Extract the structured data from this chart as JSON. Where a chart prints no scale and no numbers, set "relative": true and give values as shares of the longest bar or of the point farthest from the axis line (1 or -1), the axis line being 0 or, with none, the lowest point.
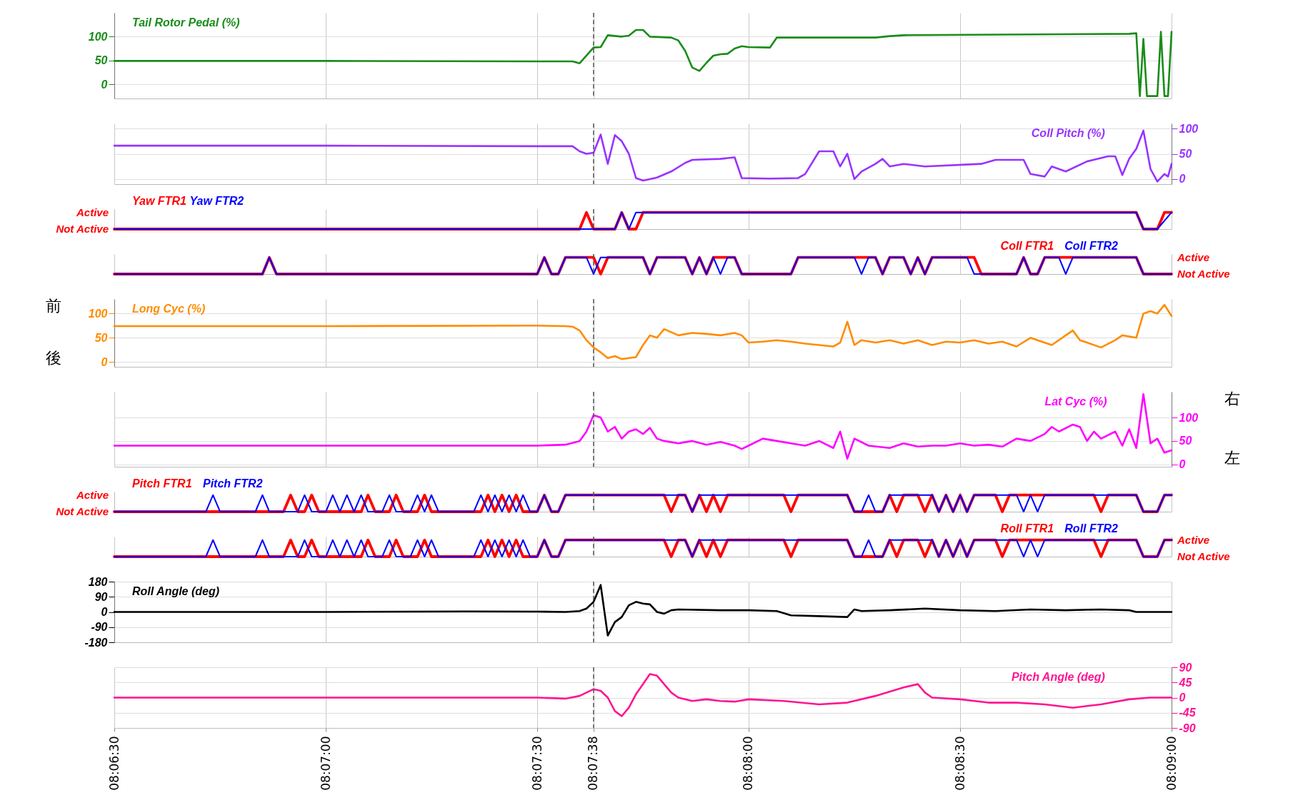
{
  "chart_data": [
    {
      "type": "line",
      "x": [
        8.10833,
        8.11667,
        8.125,
        8.12639,
        8.12667,
        8.12722,
        8.1275,
        8.12778,
        8.12833,
        8.12861,
        8.12889,
        8.12917,
        8.12944,
        8.13028,
        8.13056,
        8.13083,
        8.13111,
        8.13139,
        8.13167,
        8.13194,
        8.13222,
        8.1325,
        8.13278,
        8.13306,
        8.13333,
        8.13417,
        8.13444,
        8.13833,
        8.13889,
        8.13944,
        8.14833,
        8.14861,
        8.14875,
        8.14889,
        8.14903,
        8.14944,
        8.14958,
        8.14972,
        8.14986,
        8.15
      ],
      "series": [
        {
          "name": "Tail Rotor Pedal (%)",
          "color": "#1a8c1a",
          "values": [
            49,
            49,
            48,
            48,
            44,
            77,
            78,
            103,
            100,
            102,
            114,
            114,
            100,
            98,
            92,
            70,
            35,
            28,
            45,
            60,
            63,
            64,
            75,
            80,
            78,
            77,
            98,
            98,
            101,
            103,
            106,
            107,
            -25,
            95,
            -25,
            -25,
            110,
            -25,
            -25,
            110
          ]
        }
      ],
      "xlim": [
        8.10833,
        8.15
      ],
      "xticks": [
        8.10833,
        8.11667,
        8.125,
        8.12722,
        8.13333,
        8.14167,
        8.15
      ],
      "ylim": [
        -30,
        150
      ],
      "yticks": [
        0,
        50,
        100
      ],
      "grid": true,
      "tick_labels": "y",
      "ref_lines": [
        {
          "axis": "x",
          "value": 8.12722,
          "line_style": "dashed",
          "color": "#555555"
        }
      ]
    },
    {
      "type": "line",
      "x": [
        8.10833,
        8.11667,
        8.125,
        8.12639,
        8.12667,
        8.12694,
        8.12722,
        8.1275,
        8.12778,
        8.12806,
        8.12833,
        8.12861,
        8.12889,
        8.12917,
        8.12944,
        8.12972,
        8.13028,
        8.13083,
        8.13111,
        8.13222,
        8.13278,
        8.13306,
        8.13417,
        8.13528,
        8.13556,
        8.13611,
        8.13667,
        8.13694,
        8.13722,
        8.1375,
        8.13778,
        8.13833,
        8.13861,
        8.13889,
        8.13944,
        8.14028,
        8.1425,
        8.14306,
        8.14417,
        8.14444,
        8.145,
        8.14528,
        8.14583,
        8.14667,
        8.1475,
        8.14778,
        8.14806,
        8.14833,
        8.14861,
        8.14889,
        8.14917,
        8.14944,
        8.14972,
        8.14986,
        8.15
      ],
      "series": [
        {
          "name": "Coll Pitch (%)",
          "color": "#9933ff",
          "axis": "y2",
          "values": [
            66,
            66,
            65,
            65,
            55,
            50,
            52,
            88,
            30,
            87,
            75,
            50,
            2,
            -3,
            0,
            3,
            15,
            32,
            38,
            40,
            43,
            2,
            1,
            2,
            10,
            55,
            55,
            25,
            50,
            0,
            15,
            30,
            40,
            25,
            30,
            25,
            30,
            38,
            38,
            10,
            5,
            25,
            15,
            35,
            45,
            45,
            8,
            40,
            60,
            96,
            20,
            -5,
            10,
            5,
            30
          ]
        }
      ],
      "xlim": [
        8.10833,
        8.15
      ],
      "xticks": [
        8.10833,
        8.11667,
        8.125,
        8.12722,
        8.13333,
        8.14167,
        8.15
      ],
      "y2lim": [
        -10,
        110
      ],
      "y2ticks": [
        0,
        50,
        100
      ],
      "grid": true,
      "tick_labels": "y",
      "ref_lines": [
        {
          "axis": "x",
          "value": 8.12722,
          "line_style": "dashed",
          "color": "#555555"
        }
      ]
    },
    {
      "type": "line",
      "relative": true,
      "series": [
        {
          "name": "Yaw FTR1",
          "color": "#ff0000",
          "x": [
            8.10833,
            8.12667,
            8.12694,
            8.12722,
            8.12806,
            8.12833,
            8.12861,
            8.12889,
            8.12917,
            8.14861,
            8.14889,
            8.14944,
            8.14972,
            8.15
          ],
          "values": [
            0,
            0,
            1,
            0,
            0,
            1,
            0,
            0,
            1,
            1,
            0,
            0,
            1,
            1
          ]
        },
        {
          "name": "Yaw FTR2",
          "color": "#0000ff",
          "x": [
            8.10833,
            8.12806,
            8.12833,
            8.12861,
            8.12889,
            8.14861,
            8.14889,
            8.14944,
            8.15
          ],
          "values": [
            0,
            0,
            1,
            0,
            1,
            1,
            0,
            0,
            1
          ]
        }
      ],
      "xlim": [
        8.10833,
        8.15
      ],
      "xticks": [
        8.10833,
        8.11667,
        8.125,
        8.12722,
        8.13333,
        8.14167,
        8.15
      ],
      "annotations": [
        "Active",
        "Not Active"
      ],
      "grid": true,
      "tick_labels": false,
      "ref_lines": [
        {
          "axis": "x",
          "value": 8.12722,
          "line_style": "dashed",
          "color": "#555555"
        }
      ]
    },
    {
      "type": "line",
      "relative": true,
      "series": [
        {
          "name": "Coll FTR1",
          "color": "#ff0000",
          "axis": "y2",
          "x": [
            8.10833,
            8.11417,
            8.11444,
            8.11472,
            8.125,
            8.12528,
            8.12556,
            8.12583,
            8.12611,
            8.12722,
            8.1275,
            8.12778,
            8.12917,
            8.12944,
            8.12972,
            8.13083,
            8.13111,
            8.13139,
            8.13167,
            8.13194,
            8.13278,
            8.13306,
            8.135,
            8.13528,
            8.13833,
            8.13861,
            8.13889,
            8.13944,
            8.13972,
            8.14,
            8.14028,
            8.14056,
            8.14222,
            8.1425,
            8.14389,
            8.14417,
            8.14444,
            8.14472,
            8.145,
            8.14861,
            8.14889,
            8.15
          ],
          "values": [
            0,
            0,
            1,
            0,
            0,
            1,
            0,
            0,
            1,
            1,
            0,
            1,
            1,
            0,
            1,
            1,
            0,
            1,
            0,
            1,
            1,
            0,
            0,
            1,
            1,
            0,
            1,
            1,
            0,
            1,
            0,
            1,
            1,
            0,
            0,
            1,
            0,
            0,
            1,
            1,
            0,
            0
          ]
        },
        {
          "name": "Coll FTR2",
          "color": "#0000ff",
          "axis": "y2",
          "x": [
            8.10833,
            8.11417,
            8.11444,
            8.11472,
            8.125,
            8.12528,
            8.12556,
            8.12583,
            8.12611,
            8.12694,
            8.12722,
            8.1275,
            8.12917,
            8.12944,
            8.12972,
            8.13083,
            8.13111,
            8.13139,
            8.13167,
            8.13194,
            8.13222,
            8.1325,
            8.13278,
            8.13306,
            8.135,
            8.13528,
            8.1375,
            8.13778,
            8.13806,
            8.13833,
            8.13861,
            8.13889,
            8.13944,
            8.13972,
            8.14,
            8.14028,
            8.14056,
            8.14194,
            8.14222,
            8.1425,
            8.14389,
            8.14417,
            8.14444,
            8.14472,
            8.145,
            8.14556,
            8.14583,
            8.14611,
            8.14861,
            8.14889,
            8.15
          ],
          "values": [
            0,
            0,
            1,
            0,
            0,
            1,
            0,
            0,
            1,
            1,
            0,
            1,
            1,
            0,
            1,
            1,
            0,
            1,
            0,
            1,
            0,
            1,
            1,
            0,
            0,
            1,
            1,
            0,
            1,
            1,
            0,
            1,
            1,
            0,
            1,
            0,
            1,
            1,
            0,
            0,
            0,
            1,
            0,
            0,
            1,
            1,
            0,
            1,
            1,
            0,
            0
          ]
        }
      ],
      "xlim": [
        8.10833,
        8.15
      ],
      "xticks": [
        8.10833,
        8.11667,
        8.125,
        8.12722,
        8.13333,
        8.14167,
        8.15
      ],
      "annotations": [
        "Active",
        "Not Active"
      ],
      "grid": true,
      "tick_labels": false,
      "ref_lines": [
        {
          "axis": "x",
          "value": 8.12722,
          "line_style": "dashed",
          "color": "#555555"
        }
      ]
    },
    {
      "type": "line",
      "x": [
        8.10833,
        8.11667,
        8.125,
        8.12611,
        8.12639,
        8.12667,
        8.12694,
        8.12722,
        8.1275,
        8.12778,
        8.12806,
        8.12833,
        8.12861,
        8.12889,
        8.12917,
        8.12944,
        8.12972,
        8.13,
        8.13056,
        8.13111,
        8.13167,
        8.13222,
        8.13278,
        8.13306,
        8.13333,
        8.13389,
        8.13444,
        8.135,
        8.13556,
        8.13611,
        8.13667,
        8.13694,
        8.13722,
        8.1375,
        8.13778,
        8.13833,
        8.13889,
        8.13944,
        8.14,
        8.14056,
        8.14111,
        8.14167,
        8.14222,
        8.14278,
        8.14333,
        8.14389,
        8.14444,
        8.14472,
        8.14528,
        8.14583,
        8.14611,
        8.14639,
        8.14667,
        8.14722,
        8.14778,
        8.14806,
        8.14861,
        8.14889,
        8.14917,
        8.14944,
        8.14972,
        8.15
      ],
      "series": [
        {
          "name": "Long Cyc (%)",
          "color": "#ff8c00",
          "values": [
            74,
            74,
            75,
            74,
            73,
            65,
            45,
            30,
            20,
            8,
            12,
            6,
            8,
            10,
            35,
            55,
            50,
            68,
            55,
            60,
            58,
            55,
            60,
            55,
            40,
            42,
            45,
            42,
            38,
            35,
            32,
            40,
            83,
            35,
            45,
            40,
            45,
            38,
            45,
            35,
            42,
            40,
            45,
            38,
            42,
            32,
            50,
            45,
            35,
            55,
            65,
            45,
            40,
            30,
            45,
            55,
            50,
            100,
            105,
            100,
            118,
            95
          ]
        }
      ],
      "xlim": [
        8.10833,
        8.15
      ],
      "xticks": [
        8.10833,
        8.11667,
        8.125,
        8.12722,
        8.13333,
        8.14167,
        8.15
      ],
      "ylim": [
        -10,
        130
      ],
      "yticks": [
        0,
        50,
        100
      ],
      "grid": true,
      "tick_labels": "y",
      "annotations": [
        "前",
        "後"
      ],
      "ref_lines": [
        {
          "axis": "x",
          "value": 8.12722,
          "line_style": "dashed",
          "color": "#555555"
        }
      ]
    },
    {
      "type": "line",
      "x": [
        8.10833,
        8.11667,
        8.125,
        8.12611,
        8.12667,
        8.12694,
        8.12722,
        8.1275,
        8.12778,
        8.12806,
        8.12833,
        8.12861,
        8.12889,
        8.12917,
        8.12944,
        8.12972,
        8.13,
        8.13056,
        8.13111,
        8.13167,
        8.13222,
        8.13278,
        8.13306,
        8.13333,
        8.13389,
        8.13444,
        8.135,
        8.13556,
        8.13611,
        8.13667,
        8.13694,
        8.13722,
        8.1375,
        8.13806,
        8.13889,
        8.13944,
        8.14,
        8.14056,
        8.14111,
        8.14167,
        8.14222,
        8.14278,
        8.14333,
        8.14389,
        8.14444,
        8.145,
        8.14528,
        8.14556,
        8.14611,
        8.14639,
        8.14667,
        8.14694,
        8.14722,
        8.14778,
        8.14806,
        8.14833,
        8.14861,
        8.14889,
        8.14917,
        8.14944,
        8.14972,
        8.15
      ],
      "series": [
        {
          "name": "Lat  Cyc (%)",
          "color": "#ff00ff",
          "axis": "y2",
          "values": [
            40,
            40,
            40,
            42,
            50,
            70,
            105,
            100,
            70,
            80,
            55,
            70,
            75,
            65,
            78,
            55,
            50,
            45,
            50,
            42,
            48,
            40,
            33,
            40,
            55,
            50,
            45,
            40,
            50,
            35,
            70,
            12,
            55,
            40,
            35,
            45,
            38,
            40,
            40,
            45,
            40,
            42,
            38,
            55,
            50,
            65,
            80,
            70,
            85,
            80,
            50,
            70,
            55,
            70,
            40,
            75,
            35,
            150,
            45,
            55,
            25,
            30
          ]
        }
      ],
      "xlim": [
        8.10833,
        8.15
      ],
      "xticks": [
        8.10833,
        8.11667,
        8.125,
        8.12722,
        8.13333,
        8.14167,
        8.15
      ],
      "y2lim": [
        -5,
        155
      ],
      "y2ticks": [
        0,
        50,
        100
      ],
      "grid": true,
      "tick_labels": "y",
      "annotations": [
        "右",
        "左"
      ],
      "ref_lines": [
        {
          "axis": "x",
          "value": 8.12722,
          "line_style": "dashed",
          "color": "#555555"
        }
      ]
    },
    {
      "type": "line",
      "relative": true,
      "series": [
        {
          "name": "Pitch FTR1",
          "color": "#ff0000",
          "x": [
            8.10833,
            8.115,
            8.11528,
            8.11556,
            8.11583,
            8.11611,
            8.11639,
            8.11806,
            8.11833,
            8.11861,
            8.11917,
            8.11944,
            8.11972,
            8.12028,
            8.12056,
            8.12083,
            8.12278,
            8.12306,
            8.12333,
            8.12361,
            8.12389,
            8.12417,
            8.12444,
            8.125,
            8.12528,
            8.12556,
            8.12583,
            8.12611,
            8.13,
            8.13028,
            8.13056,
            8.13083,
            8.13111,
            8.13139,
            8.13167,
            8.13194,
            8.13222,
            8.1325,
            8.13472,
            8.135,
            8.13528,
            8.13722,
            8.1375,
            8.13861,
            8.13889,
            8.13917,
            8.13944,
            8.14,
            8.14028,
            8.14056,
            8.14083,
            8.14111,
            8.14139,
            8.14167,
            8.14194,
            8.14222,
            8.14306,
            8.14333,
            8.14361,
            8.14694,
            8.14722,
            8.1475,
            8.14861,
            8.14889,
            8.14944,
            8.14972,
            8.15
          ],
          "values": [
            0,
            0,
            1,
            0,
            0,
            1,
            0,
            0,
            1,
            0,
            0,
            1,
            0,
            0,
            1,
            0,
            0,
            1,
            0,
            1,
            0,
            1,
            0,
            0,
            1,
            0,
            0,
            1,
            1,
            0,
            1,
            1,
            0,
            1,
            0,
            1,
            0,
            1,
            1,
            0,
            1,
            1,
            0,
            0,
            1,
            0,
            1,
            1,
            0,
            1,
            0,
            1,
            0,
            1,
            0,
            1,
            1,
            0,
            1,
            1,
            0,
            1,
            1,
            0,
            0,
            1,
            1
          ]
        },
        {
          "name": "Pitch FTR2",
          "color": "#0000ff",
          "x": [
            8.10833,
            8.11194,
            8.11222,
            8.1125,
            8.11389,
            8.11417,
            8.11444,
            8.11556,
            8.11583,
            8.11611,
            8.11667,
            8.11694,
            8.11722,
            8.1175,
            8.11778,
            8.11806,
            8.11833,
            8.11889,
            8.11917,
            8.11944,
            8.12,
            8.12028,
            8.12056,
            8.12083,
            8.12111,
            8.1225,
            8.12278,
            8.12306,
            8.12333,
            8.12361,
            8.12389,
            8.12417,
            8.12444,
            8.12472,
            8.125,
            8.12528,
            8.12556,
            8.12583,
            8.12611,
            8.13083,
            8.13111,
            8.13139,
            8.13722,
            8.1375,
            8.13778,
            8.13806,
            8.13833,
            8.13861,
            8.13889,
            8.14056,
            8.14083,
            8.14111,
            8.14139,
            8.14167,
            8.14194,
            8.14222,
            8.14389,
            8.14417,
            8.14444,
            8.14472,
            8.145,
            8.14861,
            8.14889,
            8.14944,
            8.14972,
            8.15
          ],
          "values": [
            0,
            0,
            1,
            0,
            0,
            1,
            0,
            0,
            1,
            0,
            0,
            1,
            0,
            1,
            0,
            1,
            0,
            0,
            1,
            0,
            0,
            1,
            0,
            1,
            0,
            0,
            1,
            0,
            1,
            0,
            1,
            0,
            1,
            0,
            0,
            1,
            0,
            0,
            1,
            1,
            0,
            1,
            1,
            0,
            0,
            1,
            0,
            0,
            1,
            1,
            0,
            1,
            0,
            1,
            0,
            1,
            1,
            0,
            1,
            0,
            1,
            1,
            0,
            0,
            1,
            1
          ]
        }
      ],
      "xlim": [
        8.10833,
        8.15
      ],
      "xticks": [
        8.10833,
        8.11667,
        8.125,
        8.12722,
        8.13333,
        8.14167,
        8.15
      ],
      "annotations": [
        "Active",
        "Not Active"
      ],
      "grid": true,
      "tick_labels": false,
      "ref_lines": [
        {
          "axis": "x",
          "value": 8.12722,
          "line_style": "dashed",
          "color": "#555555"
        }
      ]
    },
    {
      "type": "line",
      "relative": true,
      "series": [
        {
          "name": "Roll FTR1",
          "color": "#ff0000",
          "axis": "y2",
          "x": [
            8.10833,
            8.115,
            8.11528,
            8.11556,
            8.11583,
            8.11611,
            8.11639,
            8.11806,
            8.11833,
            8.11861,
            8.11917,
            8.11944,
            8.11972,
            8.12028,
            8.12056,
            8.12083,
            8.12278,
            8.12306,
            8.12333,
            8.12361,
            8.12389,
            8.12417,
            8.12444,
            8.125,
            8.12528,
            8.12556,
            8.12583,
            8.12611,
            8.13,
            8.13028,
            8.13056,
            8.13083,
            8.13111,
            8.13139,
            8.13167,
            8.13194,
            8.13222,
            8.1325,
            8.13472,
            8.135,
            8.13528,
            8.13722,
            8.1375,
            8.13861,
            8.13889,
            8.13917,
            8.13944,
            8.14,
            8.14028,
            8.14056,
            8.14083,
            8.14111,
            8.14139,
            8.14167,
            8.14194,
            8.14222,
            8.14306,
            8.14333,
            8.14361,
            8.14694,
            8.14722,
            8.1475,
            8.14861,
            8.14889,
            8.14944,
            8.14972,
            8.15
          ],
          "values": [
            0,
            0,
            1,
            0,
            0,
            1,
            0,
            0,
            1,
            0,
            0,
            1,
            0,
            0,
            1,
            0,
            0,
            1,
            0,
            1,
            0,
            1,
            0,
            0,
            1,
            0,
            0,
            1,
            1,
            0,
            1,
            1,
            0,
            1,
            0,
            1,
            0,
            1,
            1,
            0,
            1,
            1,
            0,
            0,
            1,
            0,
            1,
            1,
            0,
            1,
            0,
            1,
            0,
            1,
            0,
            1,
            1,
            0,
            1,
            1,
            0,
            1,
            1,
            0,
            0,
            1,
            1
          ]
        },
        {
          "name": "Roll FTR2",
          "color": "#0000ff",
          "axis": "y2",
          "x": [
            8.10833,
            8.11194,
            8.11222,
            8.1125,
            8.11389,
            8.11417,
            8.11444,
            8.11556,
            8.11583,
            8.11611,
            8.11667,
            8.11694,
            8.11722,
            8.1175,
            8.11778,
            8.11806,
            8.11833,
            8.11889,
            8.11917,
            8.11944,
            8.12,
            8.12028,
            8.12056,
            8.12083,
            8.12111,
            8.1225,
            8.12278,
            8.12306,
            8.12333,
            8.12361,
            8.12389,
            8.12417,
            8.12444,
            8.12472,
            8.125,
            8.12528,
            8.12556,
            8.12583,
            8.12611,
            8.13083,
            8.13111,
            8.13139,
            8.13722,
            8.1375,
            8.13778,
            8.13806,
            8.13833,
            8.13861,
            8.13889,
            8.14056,
            8.14083,
            8.14111,
            8.14139,
            8.14167,
            8.14194,
            8.14222,
            8.14389,
            8.14417,
            8.14444,
            8.14472,
            8.145,
            8.14861,
            8.14889,
            8.14944,
            8.14972,
            8.15
          ],
          "values": [
            0,
            0,
            1,
            0,
            0,
            1,
            0,
            0,
            1,
            0,
            0,
            1,
            0,
            1,
            0,
            1,
            0,
            0,
            1,
            0,
            0,
            1,
            0,
            1,
            0,
            0,
            1,
            0,
            1,
            0,
            1,
            0,
            1,
            0,
            0,
            1,
            0,
            0,
            1,
            1,
            0,
            1,
            1,
            0,
            0,
            1,
            0,
            0,
            1,
            1,
            0,
            1,
            0,
            1,
            0,
            1,
            1,
            0,
            1,
            0,
            1,
            1,
            0,
            0,
            1,
            1
          ]
        }
      ],
      "xlim": [
        8.10833,
        8.15
      ],
      "xticks": [
        8.10833,
        8.11667,
        8.125,
        8.12722,
        8.13333,
        8.14167,
        8.15
      ],
      "annotations": [
        "Active",
        "Not Active"
      ],
      "grid": true,
      "tick_labels": false,
      "ref_lines": [
        {
          "axis": "x",
          "value": 8.12722,
          "line_style": "dashed",
          "color": "#555555"
        }
      ]
    },
    {
      "type": "line",
      "x": [
        8.10833,
        8.11667,
        8.12222,
        8.125,
        8.12611,
        8.12667,
        8.12694,
        8.12722,
        8.1275,
        8.12778,
        8.12806,
        8.12833,
        8.12861,
        8.12889,
        8.12917,
        8.12944,
        8.12972,
        8.13,
        8.13028,
        8.13056,
        8.13222,
        8.13333,
        8.13444,
        8.135,
        8.13611,
        8.13722,
        8.1375,
        8.13778,
        8.13889,
        8.14028,
        8.14167,
        8.14306,
        8.14444,
        8.14583,
        8.14722,
        8.14833,
        8.14861,
        8.15
      ],
      "series": [
        {
          "name": "Roll Angle (deg)",
          "color": "#000000",
          "values": [
            0,
            0,
            3,
            2,
            0,
            5,
            20,
            60,
            160,
            -140,
            -60,
            -30,
            40,
            60,
            50,
            45,
            0,
            -10,
            10,
            15,
            10,
            10,
            5,
            -20,
            -25,
            -30,
            15,
            5,
            10,
            20,
            10,
            5,
            15,
            10,
            15,
            10,
            0,
            0
          ]
        }
      ],
      "xlim": [
        8.10833,
        8.15
      ],
      "xticks": [
        8.10833,
        8.11667,
        8.125,
        8.12722,
        8.13333,
        8.14167,
        8.15
      ],
      "ylim": [
        -180,
        180
      ],
      "yticks": [
        -180,
        -90,
        0,
        90,
        180
      ],
      "grid": true,
      "tick_labels": "y",
      "ref_lines": [
        {
          "axis": "x",
          "value": 8.12722,
          "line_style": "dashed",
          "color": "#555555"
        }
      ]
    },
    {
      "type": "line",
      "x": [
        8.10833,
        8.11667,
        8.125,
        8.12611,
        8.12667,
        8.12722,
        8.1275,
        8.12778,
        8.12806,
        8.12833,
        8.12861,
        8.12889,
        8.12917,
        8.12944,
        8.12972,
        8.13,
        8.13028,
        8.13056,
        8.13111,
        8.13167,
        8.13222,
        8.13278,
        8.13333,
        8.13472,
        8.13611,
        8.13722,
        8.13833,
        8.13944,
        8.14,
        8.14028,
        8.14056,
        8.14167,
        8.14278,
        8.14389,
        8.145,
        8.14611,
        8.14722,
        8.14833,
        8.14917,
        8.15
      ],
      "series": [
        {
          "name": "Pitch Angle (deg)",
          "color": "#ff1493",
          "axis": "y2",
          "values": [
            0,
            0,
            0,
            -3,
            5,
            25,
            20,
            0,
            -40,
            -55,
            -30,
            10,
            40,
            70,
            65,
            40,
            15,
            0,
            -10,
            -5,
            -10,
            -12,
            -5,
            -10,
            -20,
            -15,
            5,
            30,
            40,
            15,
            0,
            -5,
            -15,
            -15,
            -20,
            -30,
            -20,
            -5,
            0,
            0
          ]
        }
      ],
      "xlim": [
        8.10833,
        8.15
      ],
      "xticks": [
        {
          "value": 8.10833,
          "label": "08:06:30"
        },
        {
          "value": 8.11667,
          "label": "08:07:00"
        },
        {
          "value": 8.125,
          "label": "08:07:30"
        },
        {
          "value": 8.12722,
          "label": "08:07:38"
        },
        {
          "value": 8.13333,
          "label": "08:08:00"
        },
        {
          "value": 8.14167,
          "label": "08:08:30"
        },
        {
          "value": 8.15,
          "label": "08:09:00"
        }
      ],
      "y2lim": [
        -90,
        90
      ],
      "y2ticks": [
        -90,
        -45,
        0,
        45,
        90
      ],
      "grid": true,
      "ref_lines": [
        {
          "axis": "x",
          "value": 8.12722,
          "line_style": "dashed",
          "color": "#555555"
        }
      ]
    }
  ]
}
